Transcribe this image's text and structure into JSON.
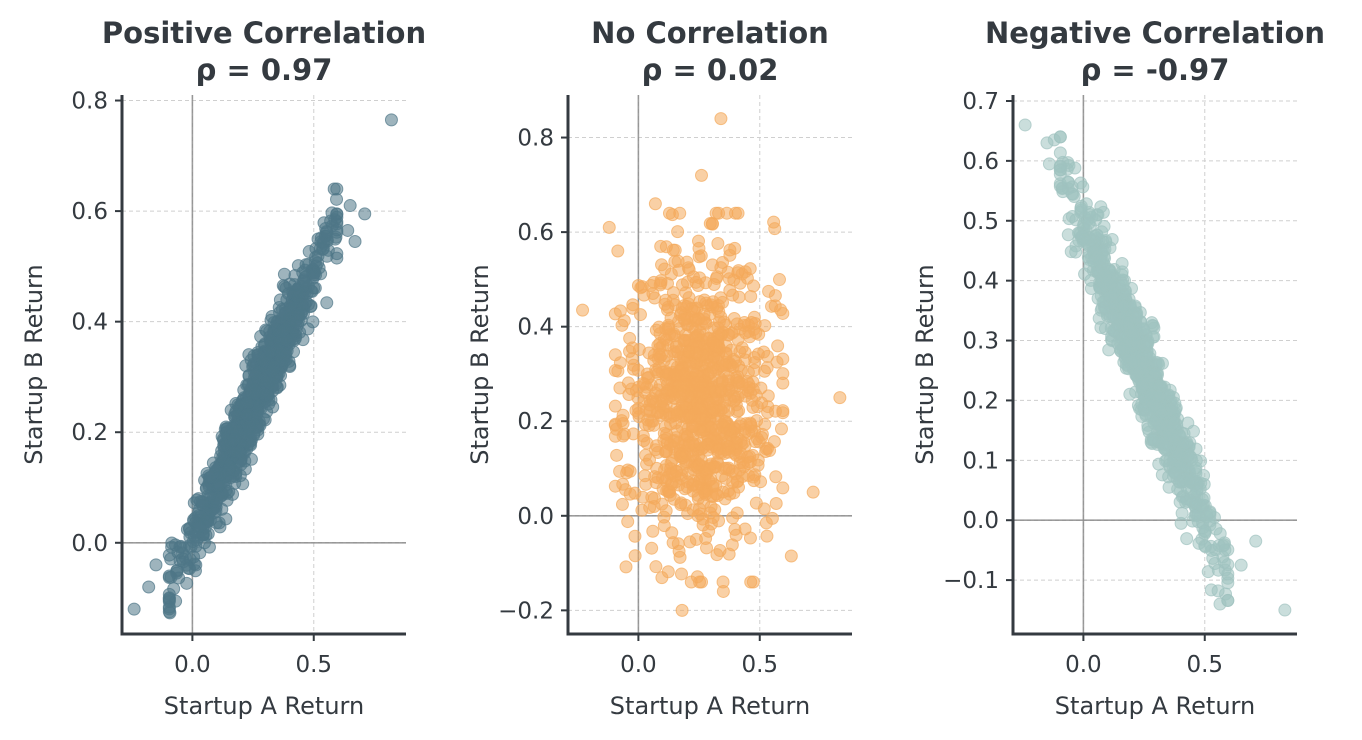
{
  "colors": {
    "text": "#343a40",
    "positive": "#4f7687",
    "none": "#f4a95b",
    "negative": "#9fc2bf"
  },
  "chart_data": [
    {
      "type": "scatter",
      "title": "Positive Correlation",
      "subtitle": "ρ = 0.97",
      "xlabel": "Startup A Return",
      "ylabel": "Startup B Return",
      "xlim": [
        -0.29,
        0.88
      ],
      "ylim": [
        -0.165,
        0.81
      ],
      "xticks": [
        0.0,
        0.5
      ],
      "xtick_labels": [
        "0.0",
        "0.5"
      ],
      "yticks": [
        0.0,
        0.2,
        0.4,
        0.6,
        0.8
      ],
      "ytick_labels": [
        "0.0",
        "0.2",
        "0.4",
        "0.6",
        "0.8"
      ],
      "grid": true,
      "zero_lines": true,
      "color": "#4f7687",
      "correlation": 0.97,
      "n_points": 1000,
      "x_mean": 0.25,
      "x_sd": 0.15,
      "y_mean": 0.25,
      "y_sd": 0.15,
      "points": [
        [
          0.82,
          0.765
        ],
        [
          -0.24,
          -0.12
        ],
        [
          0.71,
          0.595
        ],
        [
          0.65,
          0.61
        ],
        [
          0.67,
          0.545
        ],
        [
          0.64,
          0.565
        ],
        [
          -0.18,
          -0.08
        ],
        [
          -0.15,
          -0.04
        ],
        [
          0.05,
          0.0
        ]
      ]
    },
    {
      "type": "scatter",
      "title": "No Correlation",
      "subtitle": "ρ = 0.02",
      "xlabel": "Startup A Return",
      "ylabel": "Startup B Return",
      "xlim": [
        -0.29,
        0.88
      ],
      "ylim": [
        -0.25,
        0.89
      ],
      "xticks": [
        0.0,
        0.5
      ],
      "xtick_labels": [
        "0.0",
        "0.5"
      ],
      "yticks": [
        -0.2,
        0.0,
        0.2,
        0.4,
        0.6,
        0.8
      ],
      "ytick_labels": [
        "−0.2",
        "0.0",
        "0.2",
        "0.4",
        "0.6",
        "0.8"
      ],
      "grid": true,
      "zero_lines": true,
      "color": "#f4a95b",
      "correlation": 0.02,
      "n_points": 1000,
      "x_mean": 0.25,
      "x_sd": 0.15,
      "y_mean": 0.25,
      "y_sd": 0.15,
      "points": [
        [
          0.34,
          0.84
        ],
        [
          -0.23,
          0.435
        ],
        [
          0.83,
          0.25
        ],
        [
          0.18,
          -0.2
        ],
        [
          0.35,
          -0.16
        ],
        [
          0.63,
          -0.085
        ],
        [
          0.72,
          0.05
        ],
        [
          -0.12,
          0.61
        ],
        [
          0.26,
          0.72
        ],
        [
          0.07,
          0.66
        ]
      ]
    },
    {
      "type": "scatter",
      "title": "Negative Correlation",
      "subtitle": "ρ = -0.97",
      "xlabel": "Startup A Return",
      "ylabel": "Startup B Return",
      "xlim": [
        -0.29,
        0.88
      ],
      "ylim": [
        -0.19,
        0.71
      ],
      "xticks": [
        0.0,
        0.5
      ],
      "xtick_labels": [
        "0.0",
        "0.5"
      ],
      "yticks": [
        -0.1,
        0.0,
        0.1,
        0.2,
        0.3,
        0.4,
        0.5,
        0.6,
        0.7
      ],
      "ytick_labels": [
        "−0.1",
        "0.0",
        "0.1",
        "0.2",
        "0.3",
        "0.4",
        "0.5",
        "0.6",
        "0.7"
      ],
      "grid": true,
      "zero_lines": true,
      "color": "#9fc2bf",
      "correlation": -0.97,
      "n_points": 1000,
      "x_mean": 0.25,
      "x_sd": 0.15,
      "y_mean": 0.25,
      "y_sd": 0.15,
      "points": [
        [
          -0.24,
          0.66
        ],
        [
          0.83,
          -0.15
        ],
        [
          0.65,
          -0.075
        ],
        [
          0.71,
          -0.035
        ],
        [
          -0.12,
          0.635
        ],
        [
          -0.15,
          0.63
        ],
        [
          -0.14,
          0.595
        ]
      ]
    }
  ]
}
